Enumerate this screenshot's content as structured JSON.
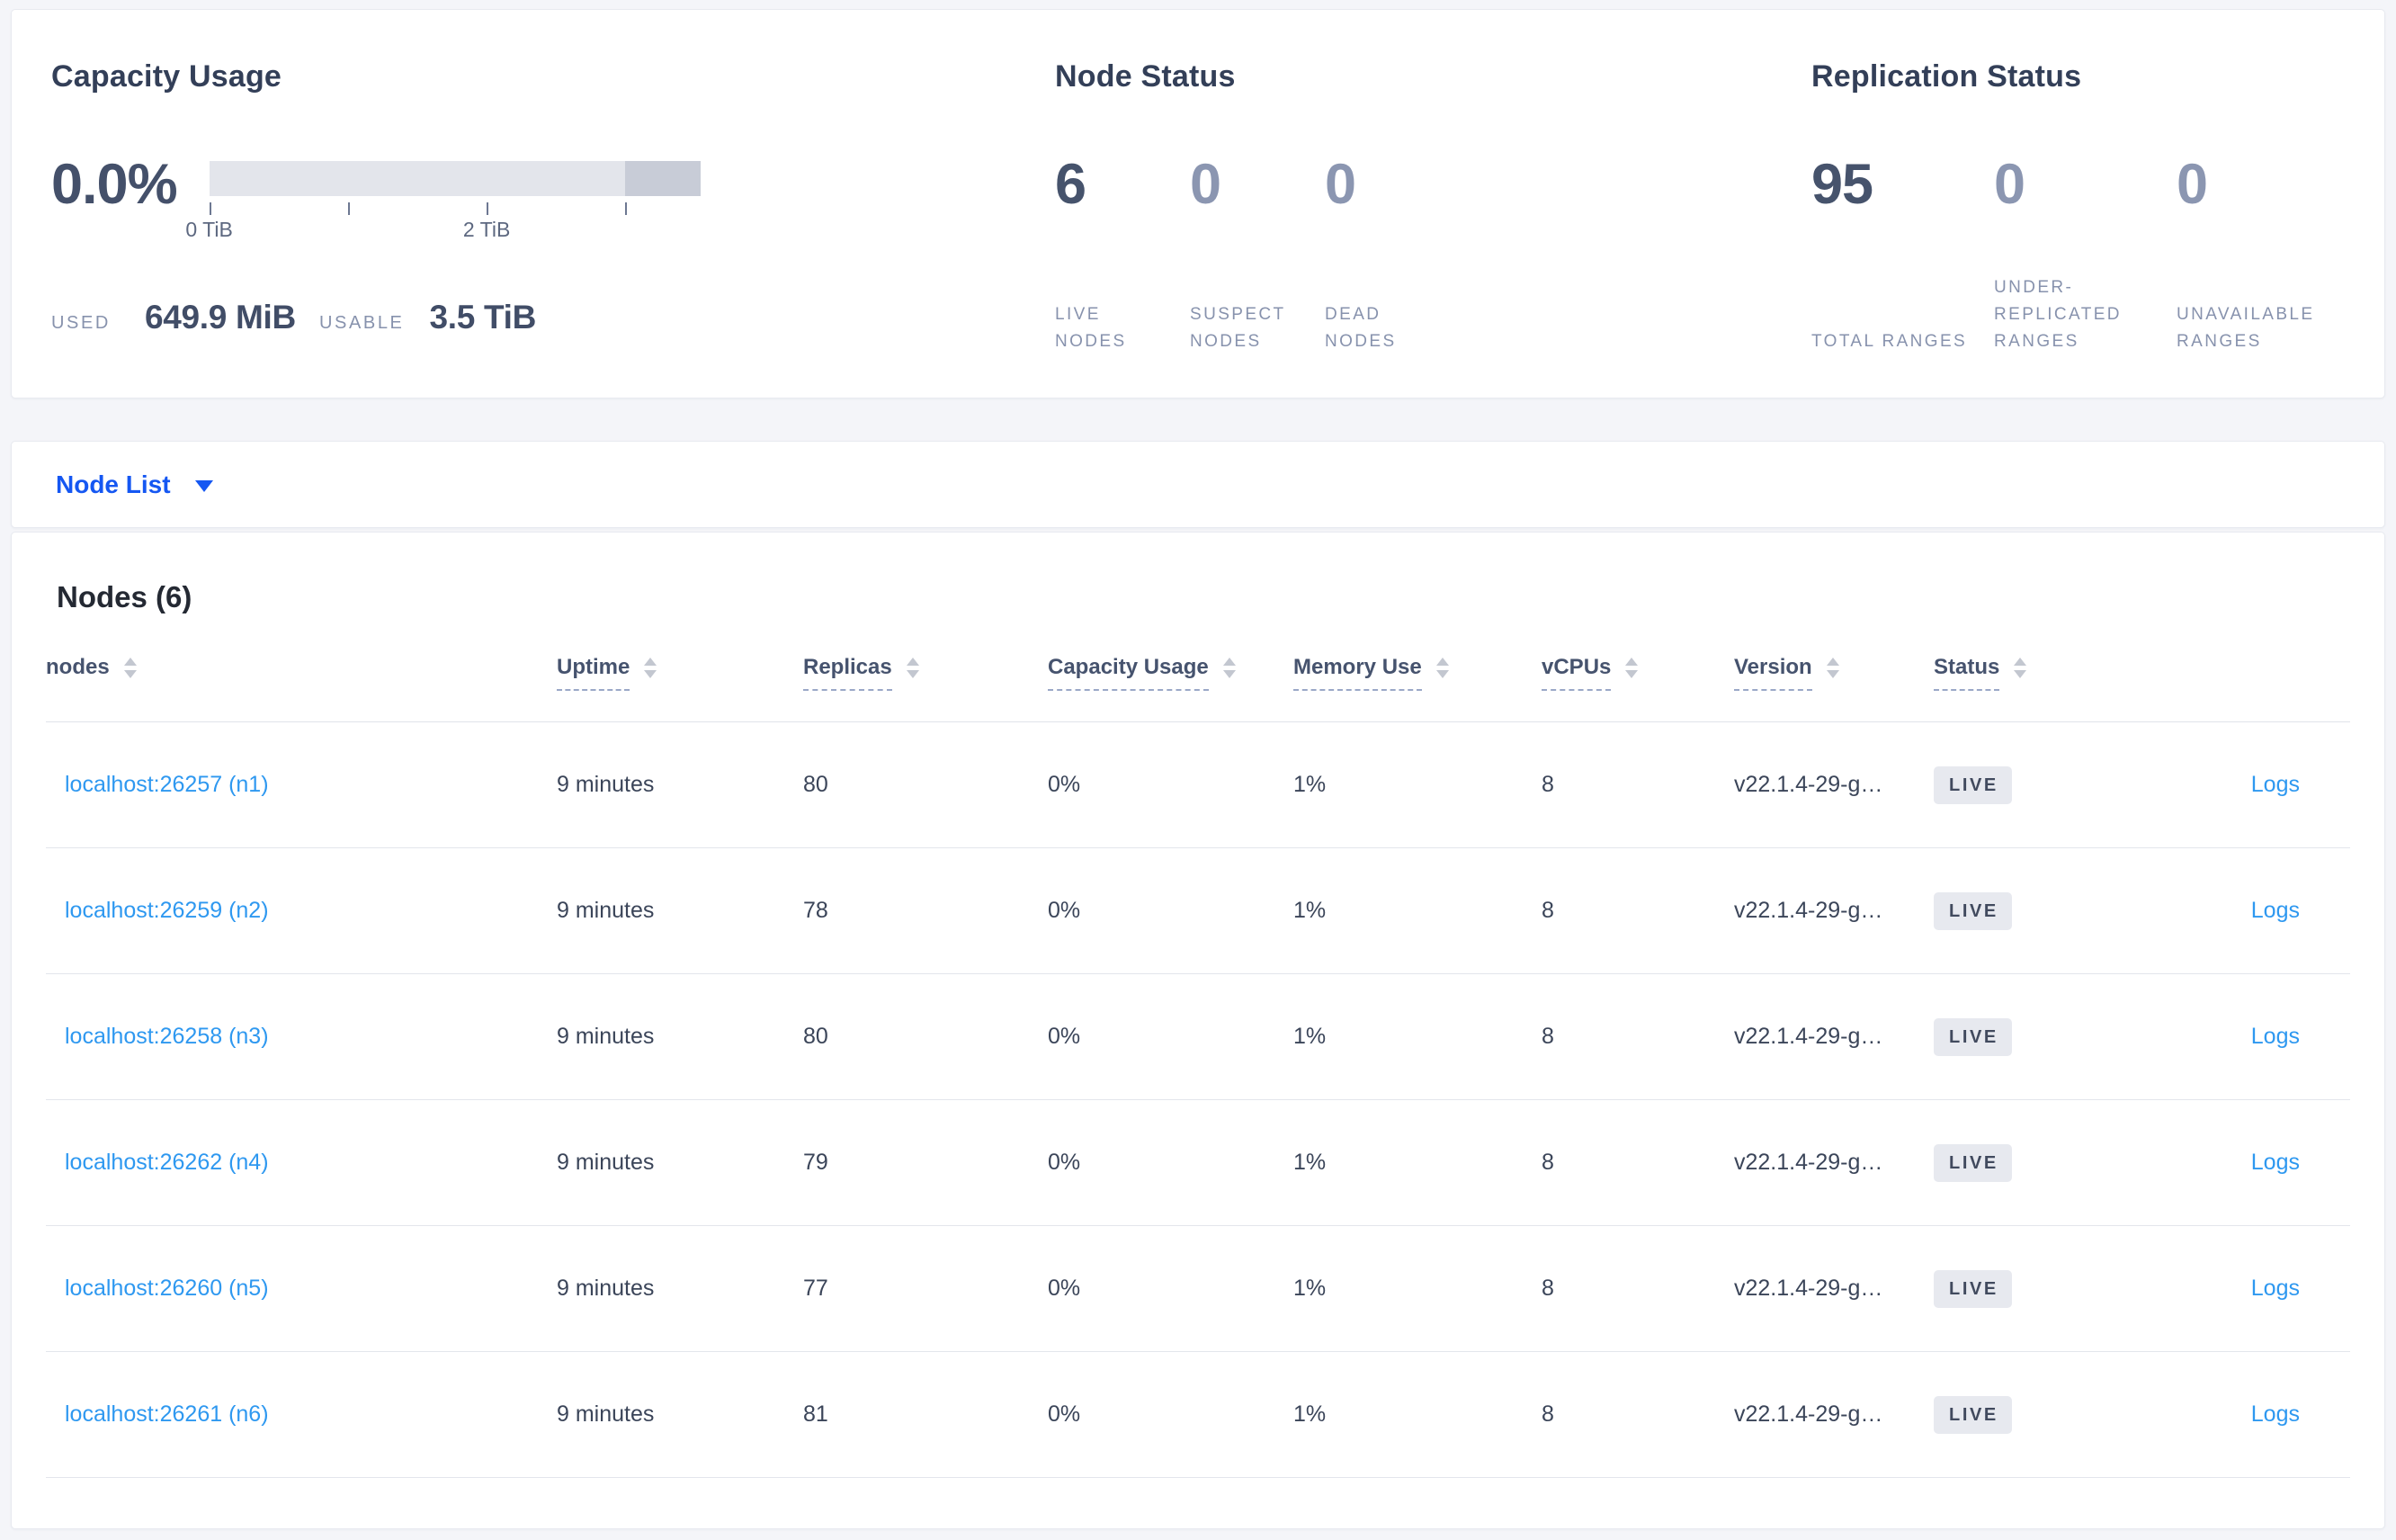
{
  "summary": {
    "capacity": {
      "title": "Capacity Usage",
      "percent": "0.0%",
      "axis_label_start": "0 TiB",
      "axis_label_mid": "2 TiB",
      "used_label": "USED",
      "used_value": "649.9 MiB",
      "usable_label": "USABLE",
      "usable_value": "3.5 TiB"
    },
    "node_status": {
      "title": "Node Status",
      "stats": [
        {
          "value": "6",
          "label": "LIVE NODES",
          "emphasis": true
        },
        {
          "value": "0",
          "label": "SUSPECT NODES",
          "emphasis": false
        },
        {
          "value": "0",
          "label": "DEAD NODES",
          "emphasis": false
        }
      ]
    },
    "replication_status": {
      "title": "Replication Status",
      "stats": [
        {
          "value": "95",
          "label": "TOTAL RANGES",
          "emphasis": true
        },
        {
          "value": "0",
          "label": "UNDER-REPLICATED RANGES",
          "emphasis": false
        },
        {
          "value": "0",
          "label": "UNAVAILABLE RANGES",
          "emphasis": false
        }
      ]
    }
  },
  "view_selector": {
    "label": "Node List",
    "icon": "caret-down"
  },
  "nodes_table": {
    "title": "Nodes (6)",
    "columns": [
      {
        "label": "nodes",
        "dotted": false
      },
      {
        "label": "Uptime",
        "dotted": true
      },
      {
        "label": "Replicas",
        "dotted": true
      },
      {
        "label": "Capacity Usage",
        "dotted": true
      },
      {
        "label": "Memory Use",
        "dotted": true
      },
      {
        "label": "vCPUs",
        "dotted": true
      },
      {
        "label": "Version",
        "dotted": true
      },
      {
        "label": "Status",
        "dotted": true
      }
    ],
    "rows": [
      {
        "address": "localhost:26257 (n1)",
        "uptime": "9 minutes",
        "replicas": "80",
        "capacity_usage": "0%",
        "memory_use": "1%",
        "vcpus": "8",
        "version": "v22.1.4-29-g…",
        "status": "LIVE",
        "logs": "Logs"
      },
      {
        "address": "localhost:26259 (n2)",
        "uptime": "9 minutes",
        "replicas": "78",
        "capacity_usage": "0%",
        "memory_use": "1%",
        "vcpus": "8",
        "version": "v22.1.4-29-g…",
        "status": "LIVE",
        "logs": "Logs"
      },
      {
        "address": "localhost:26258 (n3)",
        "uptime": "9 minutes",
        "replicas": "80",
        "capacity_usage": "0%",
        "memory_use": "1%",
        "vcpus": "8",
        "version": "v22.1.4-29-g…",
        "status": "LIVE",
        "logs": "Logs"
      },
      {
        "address": "localhost:26262 (n4)",
        "uptime": "9 minutes",
        "replicas": "79",
        "capacity_usage": "0%",
        "memory_use": "1%",
        "vcpus": "8",
        "version": "v22.1.4-29-g…",
        "status": "LIVE",
        "logs": "Logs"
      },
      {
        "address": "localhost:26260 (n5)",
        "uptime": "9 minutes",
        "replicas": "77",
        "capacity_usage": "0%",
        "memory_use": "1%",
        "vcpus": "8",
        "version": "v22.1.4-29-g…",
        "status": "LIVE",
        "logs": "Logs"
      },
      {
        "address": "localhost:26261 (n6)",
        "uptime": "9 minutes",
        "replicas": "81",
        "capacity_usage": "0%",
        "memory_use": "1%",
        "vcpus": "8",
        "version": "v22.1.4-29-g…",
        "status": "LIVE",
        "logs": "Logs"
      }
    ]
  },
  "colors": {
    "accent_blue": "#1557f2",
    "link_blue": "#2e98f0",
    "dark_slate": "#46536c",
    "muted_slate": "#8b96b1",
    "badge_bg": "#e7e9ef",
    "bar_track": "#e3e5eb",
    "bar_segment": "#c8ccd7",
    "page_bg": "#f4f5f9"
  }
}
